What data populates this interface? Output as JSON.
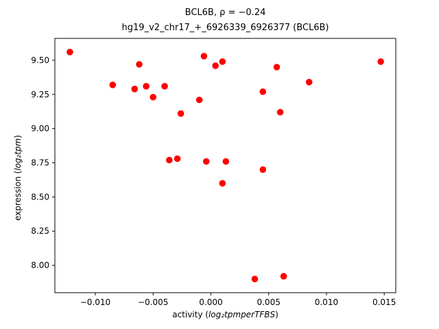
{
  "figure": {
    "title_line1": "BCL6B, ρ = −0.24",
    "title_line2": "hg19_v2_chr17_+_6926339_6926377 (BCL6B)",
    "xlabel": {
      "prefix": "activity (",
      "math": "log₂tpmperTFBS",
      "suffix": ")"
    },
    "ylabel": {
      "prefix": "expression (",
      "math": "log₂tpm",
      "suffix": ")"
    }
  },
  "chart_data": {
    "type": "scatter",
    "title": "BCL6B, ρ = −0.24",
    "subtitle": "hg19_v2_chr17_+_6926339_6926377 (BCL6B)",
    "xlabel": "activity (log2 tpm per TFBS)",
    "ylabel": "expression (log2 tpm)",
    "legend": null,
    "grid": false,
    "marker_color": "#ff0000",
    "marker_radius": 4.8,
    "xlim": [
      -0.0135,
      0.016
    ],
    "ylim": [
      7.8,
      9.66
    ],
    "x_ticks": {
      "values": [
        -0.01,
        -0.005,
        0.0,
        0.005,
        0.01,
        0.015
      ],
      "labels": [
        "−0.010",
        "−0.005",
        "0.000",
        "0.005",
        "0.010",
        "0.015"
      ]
    },
    "y_ticks": {
      "values": [
        8.0,
        8.25,
        8.5,
        8.75,
        9.0,
        9.25,
        9.5
      ],
      "labels": [
        "8.00",
        "8.25",
        "8.50",
        "8.75",
        "9.00",
        "9.25",
        "9.50"
      ]
    },
    "points": [
      [
        -0.0122,
        9.56
      ],
      [
        -0.0085,
        9.32
      ],
      [
        -0.0066,
        9.29
      ],
      [
        -0.0062,
        9.47
      ],
      [
        -0.0056,
        9.31
      ],
      [
        -0.005,
        9.23
      ],
      [
        -0.004,
        9.31
      ],
      [
        -0.0036,
        8.77
      ],
      [
        -0.0029,
        8.78
      ],
      [
        -0.0026,
        9.11
      ],
      [
        -0.001,
        9.21
      ],
      [
        -0.0006,
        9.53
      ],
      [
        -0.0004,
        8.76
      ],
      [
        0.0004,
        9.46
      ],
      [
        0.001,
        9.49
      ],
      [
        0.001,
        8.6
      ],
      [
        0.0013,
        8.76
      ],
      [
        0.0038,
        7.9
      ],
      [
        0.0045,
        8.7
      ],
      [
        0.0045,
        9.27
      ],
      [
        0.0057,
        9.45
      ],
      [
        0.006,
        9.12
      ],
      [
        0.0063,
        7.92
      ],
      [
        0.0085,
        9.34
      ],
      [
        0.0147,
        9.49
      ]
    ]
  }
}
